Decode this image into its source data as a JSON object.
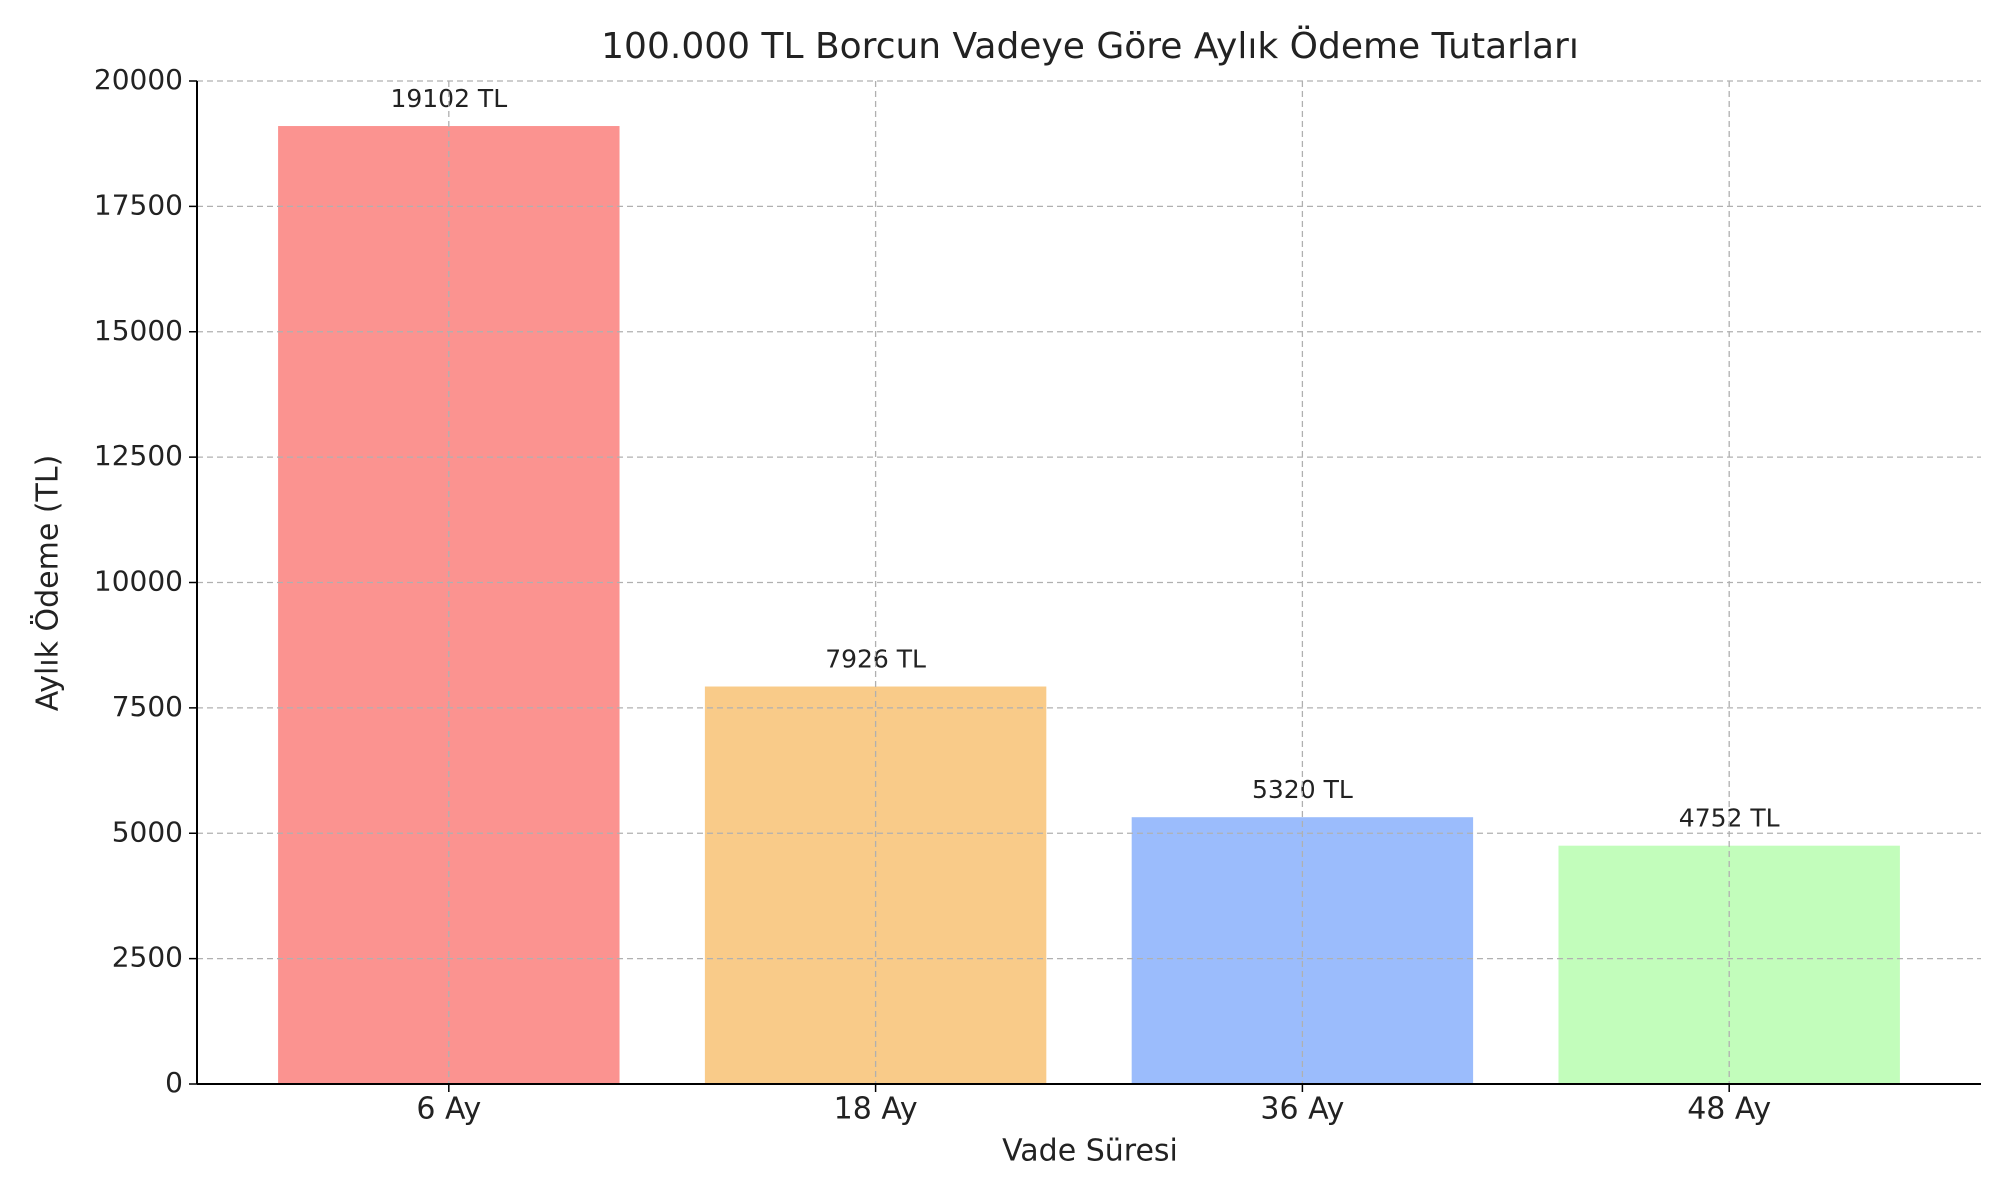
{
  "chart_data": {
    "type": "bar",
    "title": "100.000 TL Borcun Vadeye Göre Aylık Ödeme Tutarları",
    "xlabel": "Vade Süresi",
    "ylabel": "Aylık Ödeme (TL)",
    "categories": [
      "6 Ay",
      "18 Ay",
      "36 Ay",
      "48 Ay"
    ],
    "values": [
      19102,
      7926,
      5320,
      4752
    ],
    "value_labels": [
      "19102 TL",
      "7926 TL",
      "5320 TL",
      "4752 TL"
    ],
    "colors": [
      "#fb9390",
      "#f9cb89",
      "#9bbcfc",
      "#c2fdbb"
    ],
    "ylim": [
      0,
      20000
    ],
    "yticks": [
      0,
      2500,
      5000,
      7500,
      10000,
      12500,
      15000,
      17500,
      20000
    ],
    "grid": true
  }
}
